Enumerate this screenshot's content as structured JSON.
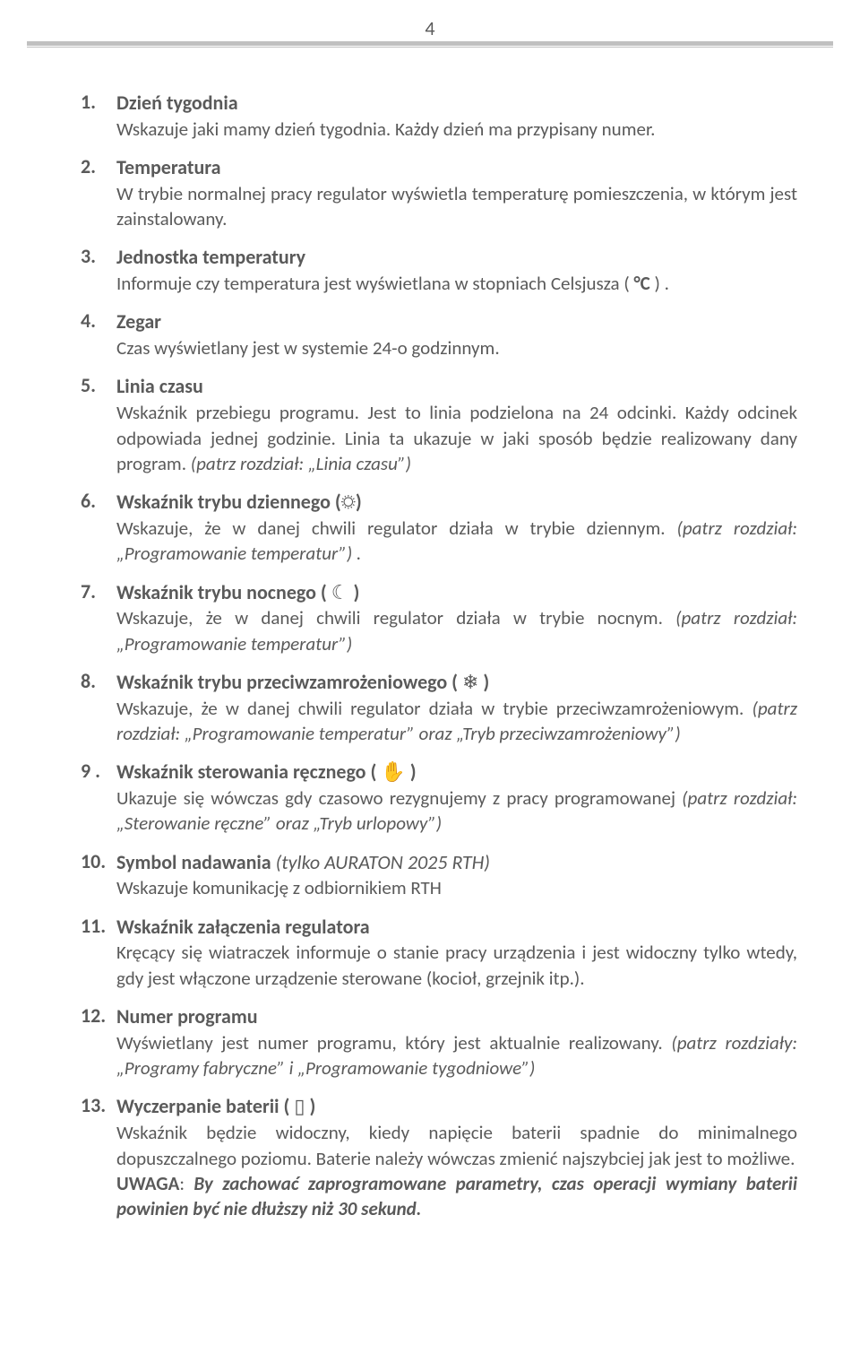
{
  "page_number": "4",
  "items": [
    {
      "num": "1.",
      "title": "Dzień tygodnia",
      "desc_html": "Wskazuje jaki mamy dzień tygodnia. Każdy dzień  ma przypisany numer."
    },
    {
      "num": "2.",
      "title": "Temperatura",
      "desc_html": "W trybie normalnej pracy regulator wyświetla temperaturę pomieszczenia, w którym jest zainstalowany."
    },
    {
      "num": "3.",
      "title": "Jednostka temperatury",
      "desc_html": "Informuje czy temperatura jest wyświetlana w stopniach Celsjusza ( <span class=\"celsius\">°C</span> ) ."
    },
    {
      "num": "4.",
      "title": "Zegar",
      "desc_html": "Czas wyświetlany jest w systemie 24-o godzinnym."
    },
    {
      "num": "5.",
      "title": "Linia czasu",
      "desc_html": "Wskaźnik przebiegu programu. Jest to linia podzielona na 24 odcinki. Każdy odcinek odpowiada jednej godzinie. Linia ta ukazuje w jaki sposób będzie realizowany dany program.  <span class=\"italic\">(patrz rozdział: „Linia czasu”)</span>"
    },
    {
      "num": "6.",
      "title_html": "Wskaźnik trybu dziennego (<span class=\"icon\">☼</span>)",
      "desc_html": "Wskazuje, że w danej chwili regulator działa w trybie dziennym. <span class=\"italic\">(patrz rozdział: „Programowanie temperatur”) .</span>"
    },
    {
      "num": "7.",
      "title_html": "Wskaźnik trybu nocnego ( <span class=\"icon\">☾</span> )",
      "desc_html": "Wskazuje, że w danej chwili regulator działa w trybie nocnym. <span class=\"italic\">(patrz rozdział: „Programowanie temperatur”)</span>"
    },
    {
      "num": "8.",
      "title_html": "Wskaźnik trybu przeciwzamrożeniowego ( <span class=\"icon\">❄</span> )",
      "desc_html": "Wskazuje, że w danej chwili regulator działa w trybie przeciw­zamrożeniowym. <span class=\"italic\">(patrz rozdział: „Programowanie temperatur” oraz „Tryb przeciwzamrożeniowy”)</span>"
    },
    {
      "num": "9 .",
      "title_html": "Wskaźnik sterowania ręcznego  ( <span class=\"icon\">✋</span> )",
      "desc_html": "Ukazuje się wówczas gdy czasowo rezygnujemy z pracy programowanej <span class=\"italic\">(patrz rozdział: „Sterowanie ręczne” oraz „Tryb urlopowy”)</span>"
    },
    {
      "num": "10.",
      "title_html": "Symbol nadawania <span class=\"note\">(tylko AURATON 2025 RTH)</span>",
      "desc_html": "Wskazuje komunikację z odbiornikiem RTH"
    },
    {
      "num": "11.",
      "title": "Wskaźnik załączenia regulatora",
      "desc_html": "Kręcący się wiatraczek informuje o stanie pracy urządzenia i jest widoczny tylko wtedy, gdy jest włączone urządzenie sterowane (kocioł, grzejnik itp.)."
    },
    {
      "num": "12.",
      "title": "Numer programu",
      "desc_html": "Wyświetlany jest numer programu, który jest aktualnie realizowany. <span class=\"italic\">(patrz rozdziały: „Programy fabryczne” i „Programowanie tygodniowe”)</span>"
    },
    {
      "num": "13.",
      "title_html": "Wyczerpanie baterii  ( <span class=\"icon\">▯</span> )",
      "desc_html": "Wskaźnik będzie widoczny, kiedy napięcie baterii spadnie do minimalnego dopuszczalnego poziomu. Baterie należy wówczas zmienić najszybciej jak jest to możliwe.<br><span class=\"bold\">UWAGA</span>: <span class=\"bolditalic\">By zachować zaprogramowane parametry, czas operacji wymiany baterii powinien być nie dłuższy niż 30 sekund.</span>"
    }
  ]
}
